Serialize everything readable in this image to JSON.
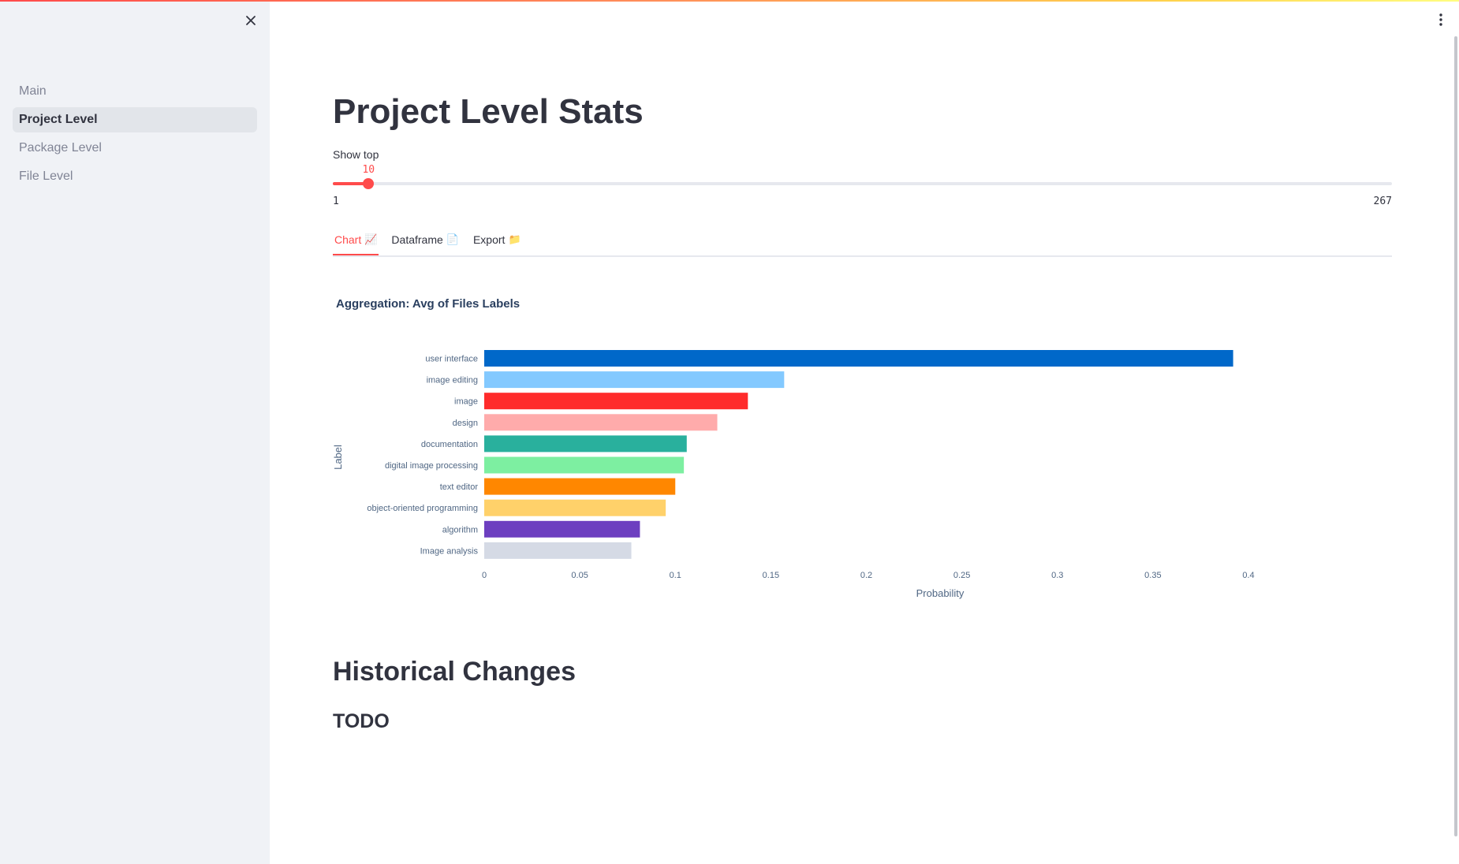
{
  "sidebar": {
    "items": [
      {
        "label": "Main",
        "active": false
      },
      {
        "label": "Project Level",
        "active": true
      },
      {
        "label": "Package Level",
        "active": false
      },
      {
        "label": "File Level",
        "active": false
      }
    ]
  },
  "main": {
    "title": "Project Level Stats",
    "slider": {
      "label": "Show top",
      "value": 10,
      "min": 1,
      "max": 267
    },
    "tabs": [
      {
        "label": "Chart",
        "icon": "📈",
        "active": true
      },
      {
        "label": "Dataframe",
        "icon": "📄",
        "active": false
      },
      {
        "label": "Export",
        "icon": "📁",
        "active": false
      }
    ],
    "historical_heading": "Historical Changes",
    "todo_heading": "TODO"
  },
  "chart_data": {
    "type": "bar",
    "orientation": "horizontal",
    "title": "Aggregation: Avg of Files Labels",
    "xlabel": "Probability",
    "ylabel": "Label",
    "xlim": [
      0,
      0.4
    ],
    "x_ticks": [
      "0",
      "0.05",
      "0.1",
      "0.15",
      "0.2",
      "0.25",
      "0.3",
      "0.35",
      "0.4"
    ],
    "categories": [
      "user interface",
      "image editing",
      "image",
      "design",
      "documentation",
      "digital image processing",
      "text editor",
      "object-oriented programming",
      "algorithm",
      "Image analysis"
    ],
    "values": [
      0.392,
      0.157,
      0.138,
      0.122,
      0.106,
      0.1045,
      0.1,
      0.095,
      0.0815,
      0.077
    ],
    "colors": [
      "#0068c9",
      "#83c9ff",
      "#ff2b2b",
      "#ffabab",
      "#29b09d",
      "#7defa1",
      "#ff8700",
      "#ffd16a",
      "#6d3fc0",
      "#d5dae5"
    ],
    "grid": false,
    "legend": "none"
  }
}
